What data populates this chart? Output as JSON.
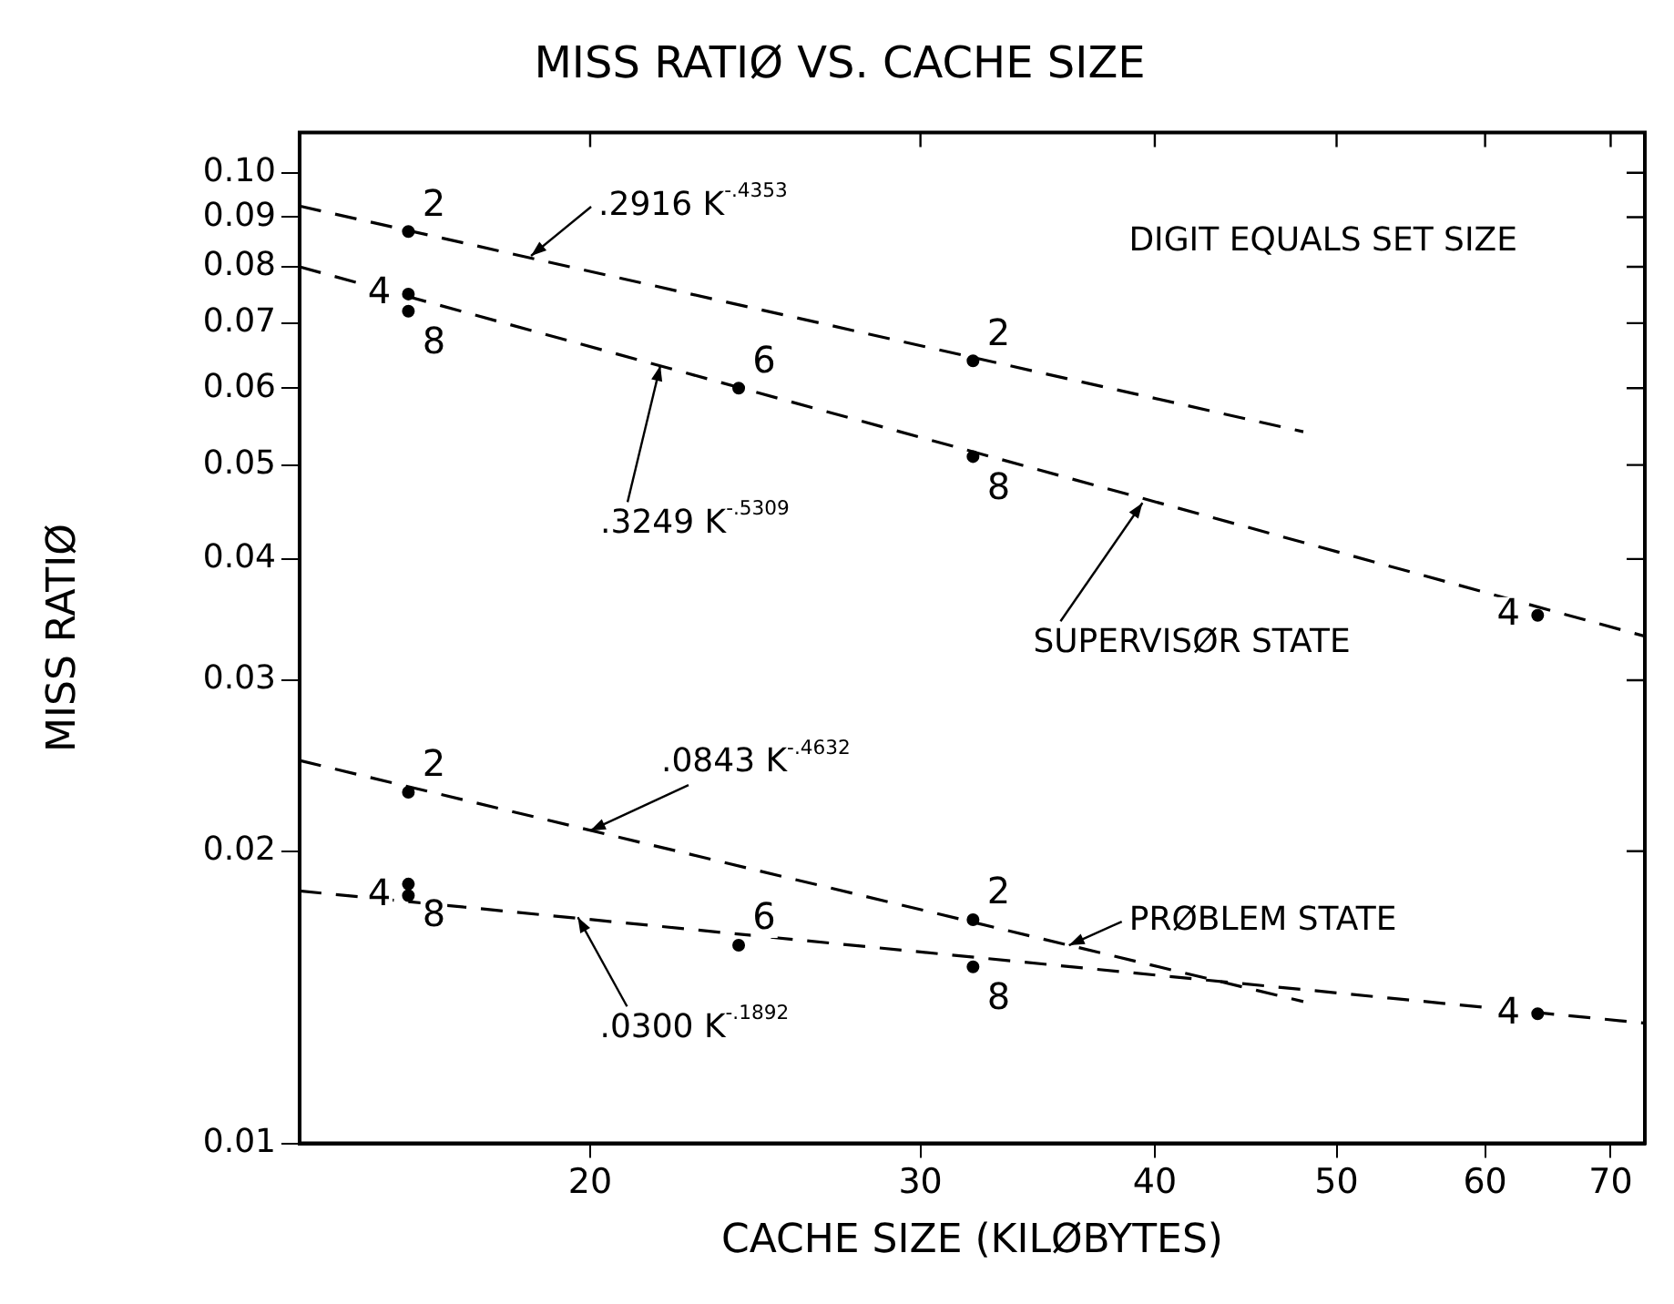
{
  "chart_data": {
    "type": "scatter",
    "title": "MISS RATIØ VS. CACHE SIZE",
    "xlabel": "CACHE SIZE (KILØBYTES)",
    "ylabel": "MISS RATIØ",
    "log": "xy",
    "xlim": [
      14,
      73
    ],
    "ylim": [
      0.01,
      0.11
    ],
    "xticks": [
      20,
      30,
      40,
      50,
      60,
      70
    ],
    "yticks": [
      {
        "value": 0.01,
        "label": "0.01"
      },
      {
        "value": 0.02,
        "label": "0.02"
      },
      {
        "value": 0.03,
        "label": "0.03"
      },
      {
        "value": 0.04,
        "label": "0.04"
      },
      {
        "value": 0.05,
        "label": "0.05"
      },
      {
        "value": 0.06,
        "label": "0.06"
      },
      {
        "value": 0.07,
        "label": "0.07"
      },
      {
        "value": 0.08,
        "label": "0.08"
      },
      {
        "value": 0.09,
        "label": "0.09"
      },
      {
        "value": 0.1,
        "label": "0.10"
      }
    ],
    "grid": false,
    "legend": false,
    "series": [
      {
        "name": "2",
        "type": "scatter",
        "color": "#000000",
        "marker": "circle",
        "x": [
          16,
          32,
          16,
          32
        ],
        "values": [
          0.087,
          0.064,
          0.023,
          0.017
        ]
      },
      {
        "name": "4",
        "type": "scatter",
        "color": "#000000",
        "marker": "circle",
        "x": [
          16,
          64,
          16,
          64
        ],
        "values": [
          0.075,
          0.035,
          0.018,
          0.0136
        ]
      },
      {
        "name": "6",
        "type": "scatter",
        "color": "#000000",
        "marker": "circle",
        "x": [
          24,
          24
        ],
        "values": [
          0.06,
          0.016
        ]
      },
      {
        "name": "8",
        "type": "scatter",
        "color": "#000000",
        "marker": "circle",
        "x": [
          16,
          32,
          16,
          32
        ],
        "values": [
          0.072,
          0.051,
          0.0185,
          0.0152
        ]
      },
      {
        "type": "line",
        "color": "#000000",
        "line_style": "dashed",
        "marker": "none",
        "x": [
          14,
          48
        ],
        "values": [
          0.0924,
          0.0541
        ]
      },
      {
        "type": "line",
        "color": "#000000",
        "line_style": "dashed",
        "marker": "none",
        "x": [
          14,
          73
        ],
        "values": [
          0.08,
          0.0333
        ]
      },
      {
        "type": "line",
        "color": "#000000",
        "line_style": "dashed",
        "marker": "none",
        "x": [
          14,
          48
        ],
        "values": [
          0.0248,
          0.014
        ]
      },
      {
        "type": "line",
        "color": "#000000",
        "line_style": "dashed",
        "marker": "none",
        "x": [
          14,
          73
        ],
        "values": [
          0.0182,
          0.0133
        ]
      }
    ],
    "annotations": [
      {
        "text": ".2916 K$^{-.4353}$",
        "x": 18.6,
        "y": 0.0821
      },
      {
        "text": ".3249 K$^{-.5309}$",
        "x": 21.8,
        "y": 0.0633
      },
      "DIGIT EQUALS SET SIZE",
      {
        "text": "SUPERVISØR STATE",
        "x": 39.4,
        "y": 0.0457
      },
      {
        "text": ".0843 K$^{-.4632}$",
        "x": 20,
        "y": 0.021
      },
      {
        "text": ".0300 K$^{-.1892}$",
        "x": 19.7,
        "y": 0.0171
      },
      {
        "text": "PRØBLEM STATE",
        "x": 36,
        "y": 0.016
      }
    ]
  }
}
